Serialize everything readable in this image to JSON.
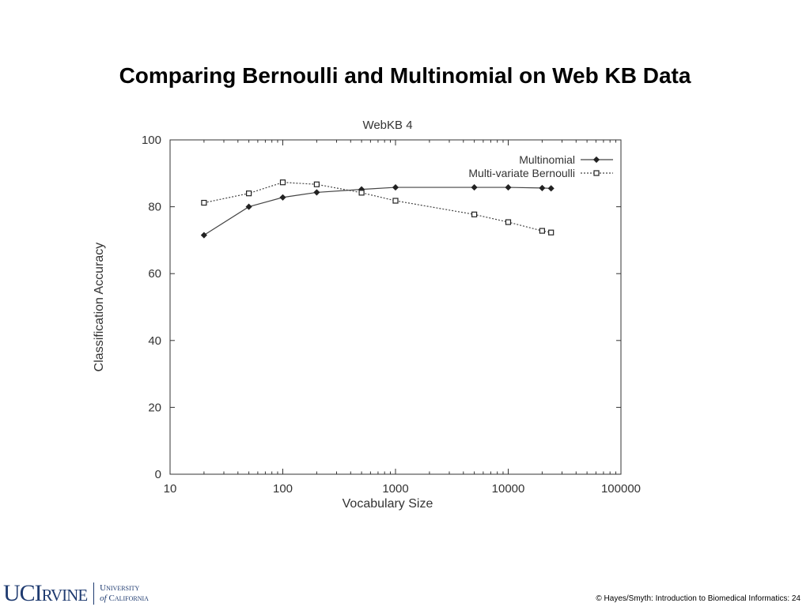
{
  "slide": {
    "title": "Comparing Bernoulli and Multinomial on Web KB Data",
    "footer": "© Hayes/Smyth: Introduction to Biomedical Informatics: 24",
    "logo_primary": "UCIrvine",
    "logo_secondary": "University of California"
  },
  "chart_data": {
    "type": "line",
    "title": "WebKB 4",
    "xlabel": "Vocabulary Size",
    "ylabel": "Classification Accuracy",
    "xscale": "log",
    "xlim": [
      10,
      100000
    ],
    "ylim": [
      0,
      100
    ],
    "x_ticks": [
      10,
      100,
      1000,
      10000,
      100000
    ],
    "x_tick_labels": [
      "10",
      "100",
      "1000",
      "10000",
      "100000"
    ],
    "y_ticks": [
      0,
      20,
      40,
      60,
      80,
      100
    ],
    "y_tick_labels": [
      "0",
      "20",
      "40",
      "60",
      "80",
      "100"
    ],
    "grid": false,
    "legend_position": "top-right",
    "series": [
      {
        "name": "Multinomial",
        "line_style": "solid",
        "marker": "diamond",
        "x": [
          20,
          50,
          100,
          200,
          500,
          1000,
          5000,
          10000,
          20000,
          24000
        ],
        "y": [
          71.5,
          80,
          82.8,
          84.3,
          85.2,
          85.8,
          85.8,
          85.8,
          85.6,
          85.5
        ]
      },
      {
        "name": "Multi-variate Bernoulli",
        "line_style": "dotted",
        "marker": "square",
        "x": [
          20,
          50,
          100,
          200,
          500,
          1000,
          5000,
          10000,
          20000,
          24000
        ],
        "y": [
          81.2,
          84,
          87.3,
          86.7,
          84.2,
          81.8,
          77.7,
          75.4,
          72.8,
          72.3
        ]
      }
    ]
  }
}
